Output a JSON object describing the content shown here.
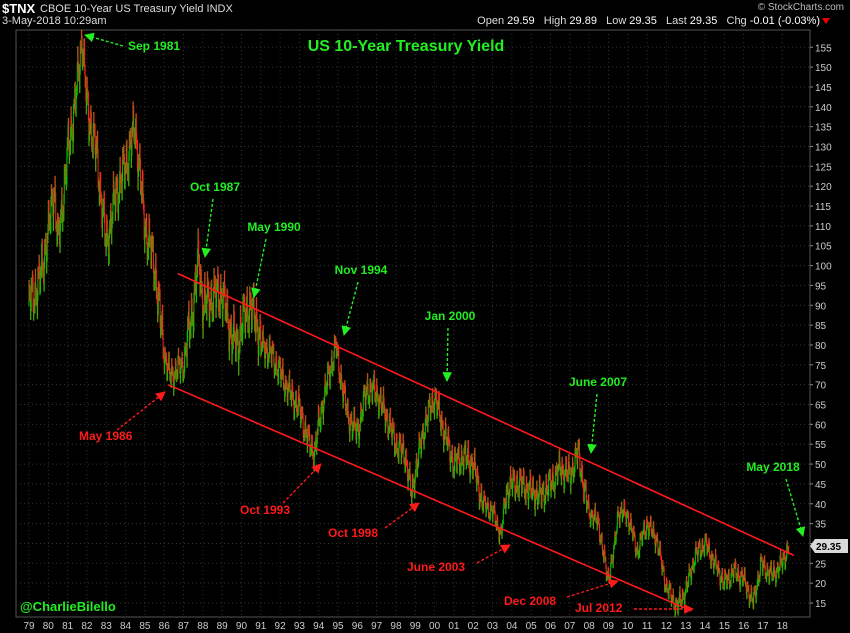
{
  "header": {
    "symbol": "$TNX",
    "description": "CBOE 10-Year US Treasury Yield",
    "exchange": "INDX",
    "timestamp": "3-May-2018 10:29am",
    "brand": "© StockCharts.com",
    "open_label": "Open",
    "open": "29.59",
    "high_label": "High",
    "high": "29.89",
    "low_label": "Low",
    "low": "29.35",
    "last_label": "Last",
    "last": "29.35",
    "chg_label": "Chg",
    "chg": "-0.01 (-0.03%)"
  },
  "colors": {
    "up": "#00c800",
    "down": "#ff2020",
    "channel": "#ff1a1a",
    "peak_annotation": "#22ee22",
    "trough_annotation": "#ff1a1a",
    "title": "#22ee22",
    "background": "#000000"
  },
  "chart_data": {
    "type": "line",
    "title": "US 10-Year Treasury Yield",
    "xlabel": "",
    "ylabel": "",
    "ylim": [
      10,
      160
    ],
    "y_ticks": [
      15,
      20,
      25,
      30,
      35,
      40,
      45,
      50,
      55,
      60,
      65,
      70,
      75,
      80,
      85,
      90,
      95,
      100,
      105,
      110,
      115,
      120,
      125,
      130,
      135,
      140,
      145,
      150,
      155
    ],
    "x_tick_labels": [
      "79",
      "80",
      "81",
      "82",
      "83",
      "84",
      "85",
      "86",
      "87",
      "88",
      "89",
      "90",
      "91",
      "92",
      "93",
      "94",
      "95",
      "96",
      "97",
      "98",
      "99",
      "00",
      "01",
      "02",
      "03",
      "04",
      "05",
      "06",
      "07",
      "08",
      "09",
      "10",
      "11",
      "12",
      "13",
      "14",
      "15",
      "16",
      "17",
      "18"
    ],
    "last_value_label": "29.35",
    "series": [
      {
        "x": [
          1979.0,
          1979.5,
          1980.0,
          1980.3,
          1980.5,
          1981.0,
          1981.5,
          1981.75,
          1982.0,
          1982.5,
          1983.0,
          1983.5,
          1984.0,
          1984.5,
          1985.0,
          1985.5,
          1986.0,
          1986.3,
          1986.5,
          1987.0,
          1987.5,
          1987.8,
          1988.0,
          1988.5,
          1989.0,
          1989.5,
          1989.8,
          1990.0,
          1990.4,
          1990.8,
          1991.0,
          1991.5,
          1992.0,
          1992.5,
          1993.0,
          1993.5,
          1993.8,
          1994.0,
          1994.5,
          1994.9,
          1995.0,
          1995.5,
          1996.0,
          1996.5,
          1997.0,
          1997.5,
          1998.0,
          1998.5,
          1998.8,
          1999.0,
          1999.5,
          2000.0,
          2000.5,
          2001.0,
          2001.5,
          2002.0,
          2002.5,
          2003.0,
          2003.45,
          2003.7,
          2004.0,
          2004.5,
          2005.0,
          2005.5,
          2006.0,
          2006.5,
          2007.0,
          2007.45,
          2007.8,
          2008.0,
          2008.5,
          2008.95,
          2009.3,
          2009.5,
          2010.0,
          2010.5,
          2011.0,
          2011.5,
          2012.0,
          2012.55,
          2013.0,
          2013.5,
          2014.0,
          2014.5,
          2015.0,
          2015.5,
          2016.0,
          2016.5,
          2016.9,
          2017.0,
          2017.5,
          2018.0,
          2018.34
        ],
        "values": [
          91,
          95,
          108,
          120,
          105,
          128,
          145,
          158,
          140,
          128,
          105,
          118,
          125,
          135,
          110,
          100,
          78,
          72,
          73,
          75,
          90,
          102,
          90,
          92,
          93,
          82,
          80,
          85,
          90,
          86,
          80,
          78,
          73,
          68,
          64,
          55,
          53,
          60,
          72,
          80,
          76,
          62,
          58,
          69,
          68,
          62,
          55,
          52,
          42,
          48,
          60,
          67,
          58,
          50,
          52,
          50,
          40,
          38,
          32,
          43,
          45,
          45,
          43,
          42,
          45,
          49,
          47,
          53,
          42,
          38,
          35,
          21,
          28,
          38,
          37,
          28,
          35,
          31,
          19,
          14,
          18,
          27,
          30,
          25,
          20,
          23,
          21,
          15,
          25,
          24,
          22,
          25,
          29.35
        ]
      }
    ],
    "channel_lines": [
      {
        "from": [
          1986.7,
          98
        ],
        "to": [
          2018.6,
          27
        ]
      },
      {
        "from": [
          1986.2,
          70
        ],
        "to": [
          2013.3,
          13
        ]
      }
    ],
    "annotations": [
      {
        "text": "Sep 1981",
        "kind": "peak"
      },
      {
        "text": "Oct 1987",
        "kind": "peak"
      },
      {
        "text": "May 1990",
        "kind": "peak"
      },
      {
        "text": "Nov 1994",
        "kind": "peak"
      },
      {
        "text": "Jan 2000",
        "kind": "peak"
      },
      {
        "text": "June 2007",
        "kind": "peak"
      },
      {
        "text": "May 2018",
        "kind": "peak"
      },
      {
        "text": "May 1986",
        "kind": "trough"
      },
      {
        "text": "Oct 1993",
        "kind": "trough"
      },
      {
        "text": "Oct 1998",
        "kind": "trough"
      },
      {
        "text": "June 2003",
        "kind": "trough"
      },
      {
        "text": "Dec 2008",
        "kind": "trough"
      },
      {
        "text": "Jul 2012",
        "kind": "trough"
      }
    ],
    "credit": "@CharlieBilello"
  }
}
